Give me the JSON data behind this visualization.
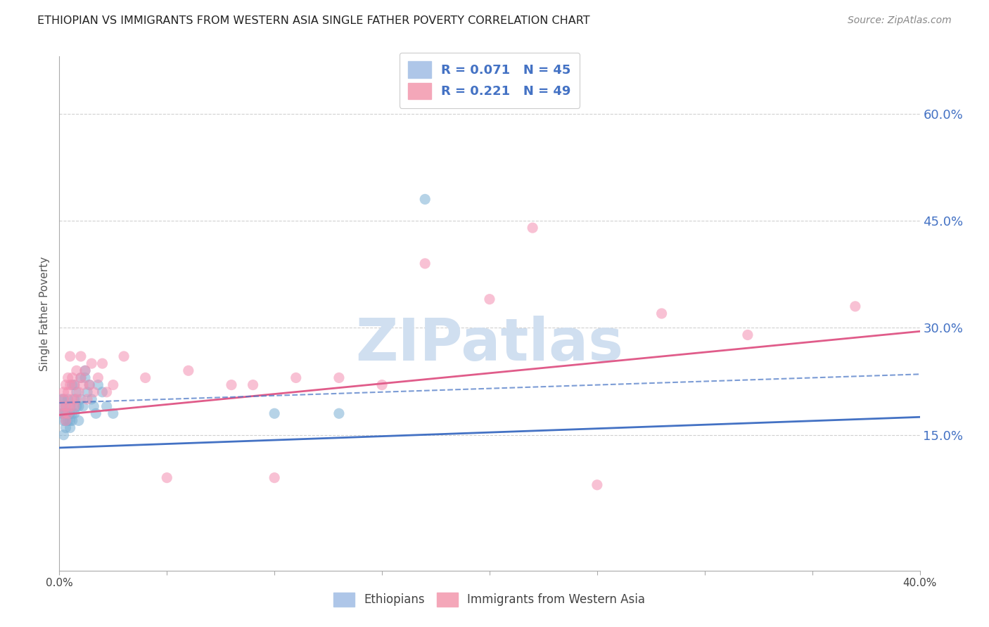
{
  "title": "ETHIOPIAN VS IMMIGRANTS FROM WESTERN ASIA SINGLE FATHER POVERTY CORRELATION CHART",
  "source": "Source: ZipAtlas.com",
  "ylabel": "Single Father Poverty",
  "ytick_labels": [
    "15.0%",
    "30.0%",
    "45.0%",
    "60.0%"
  ],
  "ytick_values": [
    0.15,
    0.3,
    0.45,
    0.6
  ],
  "xlim": [
    0.0,
    0.4
  ],
  "ylim": [
    -0.04,
    0.68
  ],
  "series1_color": "#7bafd4",
  "series2_color": "#f48fb1",
  "trendline1_color": "#4472c4",
  "trendline2_color": "#e05c8a",
  "watermark": "ZIPatlas",
  "watermark_color": "#d0dff0",
  "background_color": "#ffffff",
  "grid_color": "#d0d0d0",
  "ethiopians_x": [
    0.001,
    0.001,
    0.001,
    0.002,
    0.002,
    0.002,
    0.002,
    0.003,
    0.003,
    0.003,
    0.003,
    0.004,
    0.004,
    0.004,
    0.005,
    0.005,
    0.005,
    0.005,
    0.006,
    0.006,
    0.006,
    0.007,
    0.007,
    0.007,
    0.008,
    0.008,
    0.009,
    0.009,
    0.01,
    0.01,
    0.011,
    0.012,
    0.012,
    0.013,
    0.014,
    0.015,
    0.016,
    0.017,
    0.018,
    0.02,
    0.022,
    0.025,
    0.1,
    0.13,
    0.17
  ],
  "ethiopians_y": [
    0.18,
    0.19,
    0.2,
    0.15,
    0.17,
    0.18,
    0.2,
    0.16,
    0.17,
    0.18,
    0.19,
    0.17,
    0.18,
    0.2,
    0.16,
    0.17,
    0.18,
    0.19,
    0.17,
    0.18,
    0.22,
    0.18,
    0.2,
    0.22,
    0.19,
    0.21,
    0.17,
    0.19,
    0.2,
    0.23,
    0.19,
    0.23,
    0.24,
    0.21,
    0.22,
    0.2,
    0.19,
    0.18,
    0.22,
    0.21,
    0.19,
    0.18,
    0.18,
    0.18,
    0.48
  ],
  "western_asia_x": [
    0.001,
    0.002,
    0.002,
    0.002,
    0.003,
    0.003,
    0.003,
    0.004,
    0.004,
    0.004,
    0.005,
    0.005,
    0.005,
    0.006,
    0.006,
    0.007,
    0.007,
    0.008,
    0.008,
    0.009,
    0.01,
    0.01,
    0.011,
    0.012,
    0.013,
    0.014,
    0.015,
    0.016,
    0.018,
    0.02,
    0.022,
    0.025,
    0.03,
    0.04,
    0.05,
    0.06,
    0.08,
    0.09,
    0.1,
    0.11,
    0.13,
    0.15,
    0.17,
    0.2,
    0.22,
    0.25,
    0.28,
    0.32,
    0.37
  ],
  "western_asia_y": [
    0.19,
    0.18,
    0.2,
    0.21,
    0.17,
    0.19,
    0.22,
    0.18,
    0.21,
    0.23,
    0.19,
    0.22,
    0.26,
    0.2,
    0.23,
    0.19,
    0.22,
    0.2,
    0.24,
    0.21,
    0.23,
    0.26,
    0.22,
    0.24,
    0.2,
    0.22,
    0.25,
    0.21,
    0.23,
    0.25,
    0.21,
    0.22,
    0.26,
    0.23,
    0.09,
    0.24,
    0.22,
    0.22,
    0.09,
    0.23,
    0.23,
    0.22,
    0.39,
    0.34,
    0.44,
    0.08,
    0.32,
    0.29,
    0.33
  ],
  "trendline1_x0": 0.0,
  "trendline1_y0": 0.132,
  "trendline1_x1": 0.4,
  "trendline1_y1": 0.175,
  "trendline2_x0": 0.0,
  "trendline2_y0": 0.178,
  "trendline2_x1": 0.4,
  "trendline2_y1": 0.295
}
